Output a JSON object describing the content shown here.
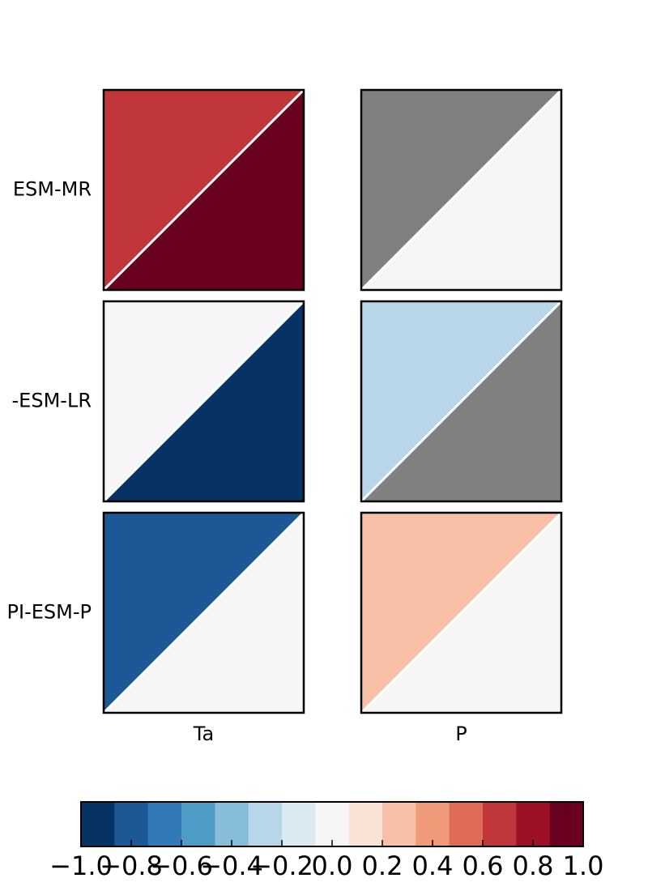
{
  "chart_data": {
    "type": "trianglemap",
    "rows": [
      "ESM-MR",
      "-ESM-LR",
      "PI-ESM-P"
    ],
    "columns": [
      "Ta",
      "P"
    ],
    "values_upper": [
      [
        0.67,
        null
      ],
      [
        0.0,
        -0.27
      ],
      [
        -0.8,
        0.27
      ]
    ],
    "values_lower": [
      [
        0.93,
        0.0
      ],
      [
        -0.93,
        null
      ],
      [
        0.0,
        0.0
      ]
    ],
    "clim": [
      -1,
      1
    ],
    "colors": [
      "#063264",
      "#1c5796",
      "#3279b7",
      "#4f9bc7",
      "#87bdd9",
      "#b7d7e8",
      "#dbeaf2",
      "#f6f6f6",
      "#fbe2d6",
      "#f8c1a7",
      "#ef9b7a",
      "#de6a58",
      "#c0363a",
      "#9c1127",
      "#69001f"
    ],
    "missing_color": "#808080",
    "cticks": [
      {
        "value": -1,
        "label": "−1.0"
      },
      {
        "value": -0.8,
        "label": "−0.8"
      },
      {
        "value": -0.6,
        "label": "−0.6"
      },
      {
        "value": -0.4,
        "label": "−0.4"
      },
      {
        "value": -0.2,
        "label": "−0.2"
      },
      {
        "value": 0,
        "label": "0.0"
      },
      {
        "value": 0.2,
        "label": "0.2"
      },
      {
        "value": 0.4,
        "label": "0.4"
      },
      {
        "value": 0.6,
        "label": "0.6"
      },
      {
        "value": 0.8,
        "label": "0.8"
      },
      {
        "value": 1,
        "label": "1.0"
      }
    ]
  }
}
